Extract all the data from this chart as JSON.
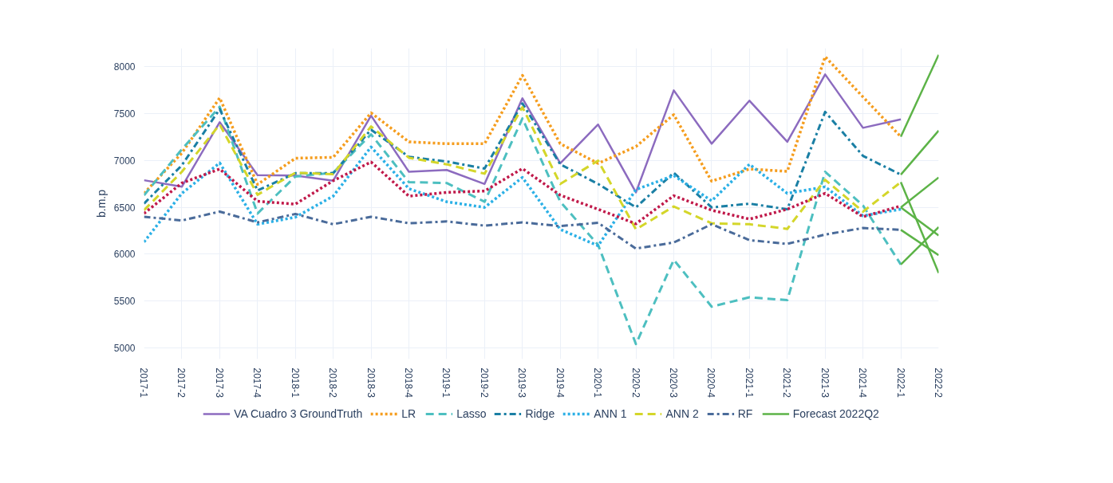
{
  "chart_data": {
    "type": "line",
    "ylabel": "b.m.p",
    "categories": [
      "2017-1",
      "2017-2",
      "2017-3",
      "2017-4",
      "2018-1",
      "2018-2",
      "2018-3",
      "2018-4",
      "2019-1",
      "2019-2",
      "2019-3",
      "2019-4",
      "2020-1",
      "2020-2",
      "2020-3",
      "2020-4",
      "2021-1",
      "2021-2",
      "2021-3",
      "2021-4",
      "2022-1",
      "2022-2"
    ],
    "ylim": [
      4880,
      8200
    ],
    "yticks": [
      5000,
      5500,
      6000,
      6500,
      7000,
      7500,
      8000
    ],
    "grid": true,
    "legend": "bottom",
    "series": [
      {
        "name": "VA Cuadro 3 GroundTruth",
        "color": "#8c6bbf",
        "line_style": "solid",
        "values": [
          6790,
          6720,
          7410,
          6845,
          6840,
          6785,
          7480,
          6880,
          6900,
          6750,
          7665,
          6970,
          7385,
          6660,
          7750,
          7180,
          7640,
          7200,
          7920,
          7350,
          7440,
          null
        ]
      },
      {
        "name": "LR",
        "color": "#f59d1e",
        "line_style": "dotted",
        "values": [
          6650,
          7080,
          7670,
          6745,
          7025,
          7035,
          7510,
          7200,
          7180,
          7180,
          7910,
          7180,
          6970,
          7150,
          7490,
          6780,
          6910,
          6885,
          8110,
          7680,
          7255,
          null
        ]
      },
      {
        "name": "Lasso",
        "color": "#4dbfc0",
        "line_style": "dashed",
        "values": [
          6630,
          7120,
          7575,
          6435,
          6830,
          6870,
          7280,
          6770,
          6760,
          6560,
          7450,
          6560,
          6100,
          5040,
          5940,
          5440,
          5540,
          5510,
          6880,
          6520,
          5890,
          null
        ]
      },
      {
        "name": "Ridge",
        "color": "#1a7fa4",
        "line_style": "dashdot",
        "values": [
          6540,
          6950,
          7550,
          6680,
          6865,
          6865,
          7330,
          7040,
          6990,
          6915,
          7610,
          6960,
          6750,
          6500,
          6870,
          6500,
          6540,
          6480,
          7520,
          7050,
          6850,
          null
        ]
      },
      {
        "name": "ANN 1",
        "color": "#2bb0e6",
        "line_style": "dotted",
        "values": [
          6130,
          6650,
          6975,
          6320,
          6395,
          6620,
          7145,
          6700,
          6560,
          6500,
          6820,
          6265,
          6090,
          6690,
          6840,
          6570,
          6960,
          6650,
          6720,
          6410,
          6480,
          null
        ]
      },
      {
        "name": "ANN 2",
        "color": "#d4d62a",
        "line_style": "dashed",
        "values": [
          6470,
          6880,
          7385,
          6635,
          6870,
          6855,
          7365,
          7030,
          6960,
          6860,
          7570,
          6750,
          7000,
          6265,
          6510,
          6330,
          6320,
          6270,
          6795,
          6455,
          6770,
          null
        ]
      },
      {
        "name": "RF",
        "color": "#4a6b9a",
        "line_style": "dashdot",
        "values": [
          6400,
          6360,
          6455,
          6340,
          6430,
          6320,
          6400,
          6330,
          6350,
          6305,
          6340,
          6300,
          6335,
          6060,
          6125,
          6320,
          6150,
          6110,
          6210,
          6280,
          6260,
          null
        ]
      },
      {
        "color": "#c0194a",
        "line_style": "dotted",
        "values": [
          6435,
          6760,
          6910,
          6565,
          6535,
          6785,
          6985,
          6620,
          6660,
          6675,
          6915,
          6630,
          6480,
          6325,
          6625,
          6470,
          6375,
          6480,
          6650,
          6400,
          6515,
          null
        ]
      },
      {
        "name": "Forecast 2022Q2",
        "color": "#5cb347",
        "line_style": "solid",
        "values": [
          null,
          null,
          null,
          null,
          null,
          null,
          null,
          null,
          null,
          null,
          null,
          null,
          null,
          null,
          null,
          null,
          null,
          null,
          null,
          null,
          7255,
          8130
        ]
      },
      {
        "color": "#5cb347",
        "line_style": "solid",
        "values": [
          null,
          null,
          null,
          null,
          null,
          null,
          null,
          null,
          null,
          null,
          null,
          null,
          null,
          null,
          null,
          null,
          null,
          null,
          null,
          null,
          6850,
          7320
        ]
      },
      {
        "color": "#5cb347",
        "line_style": "solid",
        "values": [
          null,
          null,
          null,
          null,
          null,
          null,
          null,
          null,
          null,
          null,
          null,
          null,
          null,
          null,
          null,
          null,
          null,
          null,
          null,
          null,
          6770,
          5800
        ]
      },
      {
        "color": "#5cb347",
        "line_style": "solid",
        "values": [
          null,
          null,
          null,
          null,
          null,
          null,
          null,
          null,
          null,
          null,
          null,
          null,
          null,
          null,
          null,
          null,
          null,
          null,
          null,
          null,
          6500,
          6820
        ]
      },
      {
        "color": "#5cb347",
        "line_style": "solid",
        "values": [
          null,
          null,
          null,
          null,
          null,
          null,
          null,
          null,
          null,
          null,
          null,
          null,
          null,
          null,
          null,
          null,
          null,
          null,
          null,
          null,
          6500,
          6200
        ]
      },
      {
        "color": "#5cb347",
        "line_style": "solid",
        "values": [
          null,
          null,
          null,
          null,
          null,
          null,
          null,
          null,
          null,
          null,
          null,
          null,
          null,
          null,
          null,
          null,
          null,
          null,
          null,
          null,
          6260,
          5990
        ]
      },
      {
        "color": "#5cb347",
        "line_style": "solid",
        "values": [
          null,
          null,
          null,
          null,
          null,
          null,
          null,
          null,
          null,
          null,
          null,
          null,
          null,
          null,
          null,
          null,
          null,
          null,
          null,
          null,
          5890,
          6290
        ]
      }
    ]
  }
}
